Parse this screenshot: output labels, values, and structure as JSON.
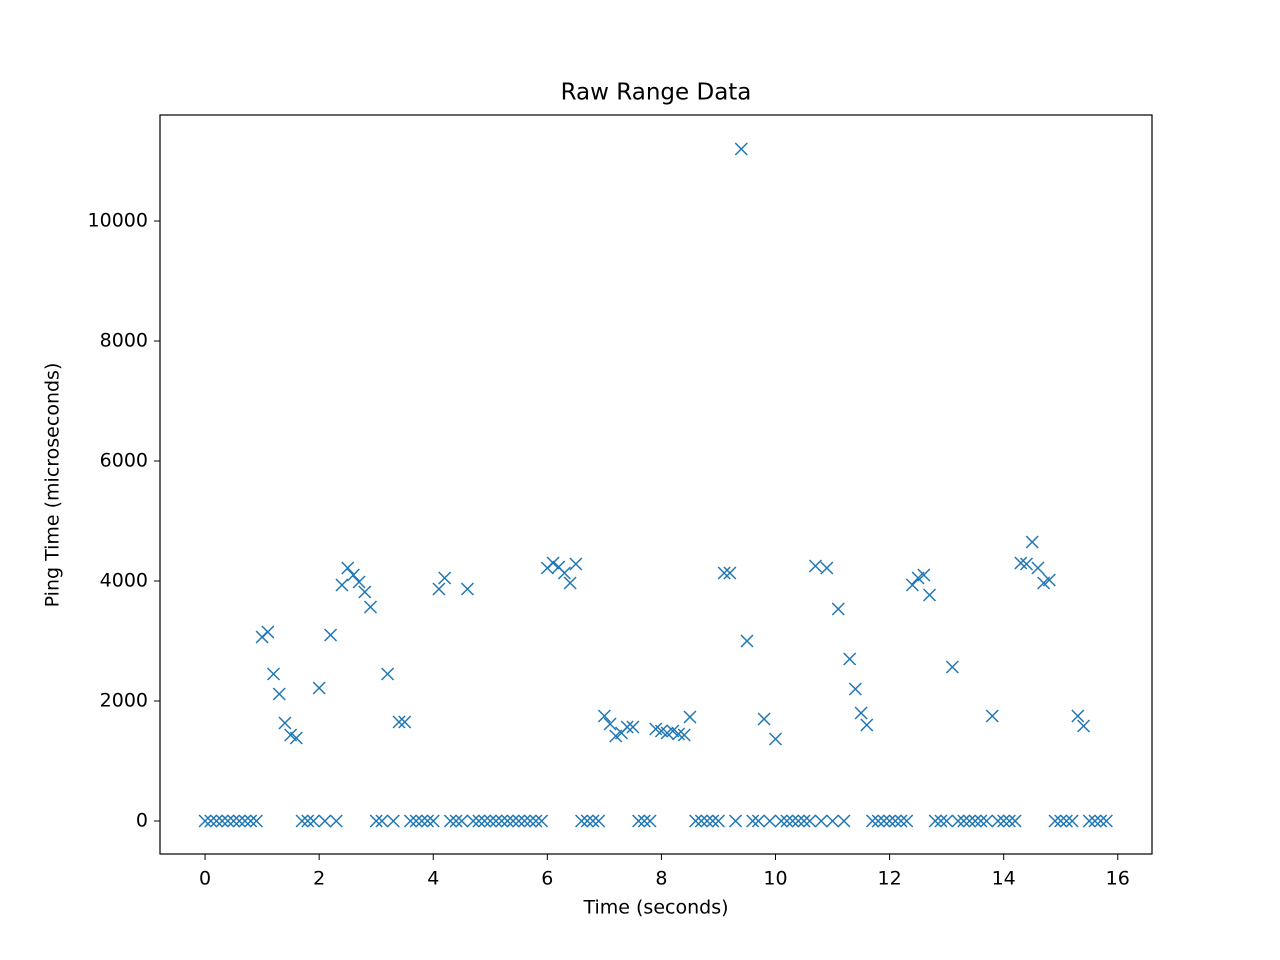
{
  "chart_data": {
    "type": "scatter",
    "title": "Raw Range Data",
    "x_label": "Time (seconds)",
    "y_label": "Ping Time (microseconds)",
    "color": "#1f77b4",
    "marker": "x",
    "grid": false,
    "xlim": [
      -0.79,
      16.6
    ],
    "ylim": [
      -550,
      11767
    ],
    "xticks": [
      0,
      2,
      4,
      6,
      8,
      10,
      12,
      14,
      16
    ],
    "yticks": [
      0,
      2000,
      4000,
      6000,
      8000,
      10000
    ],
    "x": [
      0,
      0.1,
      0.2,
      0.3,
      0.4,
      0.5,
      0.6,
      0.7,
      0.8,
      0.9,
      1.0,
      1.1,
      1.2,
      1.3,
      1.4,
      1.5,
      1.6,
      1.7,
      1.8,
      1.9,
      2.0,
      2.1,
      2.2,
      2.3,
      2.4,
      2.5,
      2.6,
      2.7,
      2.8,
      2.9,
      3.0,
      3.1,
      3.2,
      3.3,
      3.4,
      3.5,
      3.6,
      3.7,
      3.8,
      3.9,
      4.0,
      4.1,
      4.2,
      4.3,
      4.4,
      4.5,
      4.6,
      4.7,
      4.8,
      4.9,
      5.0,
      5.1,
      5.2,
      5.3,
      5.4,
      5.5,
      5.6,
      5.7,
      5.8,
      5.9,
      6.0,
      6.1,
      6.2,
      6.3,
      6.4,
      6.5,
      6.6,
      6.7,
      6.8,
      6.9,
      7.0,
      7.1,
      7.2,
      7.3,
      7.4,
      7.5,
      7.6,
      7.7,
      7.8,
      7.9,
      8.0,
      8.1,
      8.2,
      8.3,
      8.4,
      8.5,
      8.6,
      8.7,
      8.8,
      8.9,
      9.0,
      9.1,
      9.2,
      9.3,
      9.4,
      9.5,
      9.6,
      9.7,
      9.8,
      9.9,
      10.0,
      10.1,
      10.2,
      10.3,
      10.4,
      10.5,
      10.6,
      10.7,
      10.8,
      10.9,
      11.0,
      11.1,
      11.2,
      11.3,
      11.4,
      11.5,
      11.6,
      11.7,
      11.8,
      11.9,
      12.0,
      12.1,
      12.2,
      12.3,
      12.4,
      12.5,
      12.6,
      12.7,
      12.8,
      12.9,
      13.0,
      13.1,
      13.2,
      13.3,
      13.4,
      13.5,
      13.6,
      13.7,
      13.8,
      13.9,
      14.0,
      14.1,
      14.2,
      14.3,
      14.4,
      14.5,
      14.6,
      14.7,
      14.8,
      14.9,
      15.0,
      15.1,
      15.2,
      15.3,
      15.4,
      15.5,
      15.6,
      15.7,
      15.8
    ],
    "values": [
      0,
      0,
      0,
      0,
      0,
      0,
      0,
      0,
      0,
      0,
      3067,
      3150,
      2450,
      2117,
      1633,
      1433,
      1383,
      0,
      0,
      0,
      2217,
      0,
      3100,
      0,
      3933,
      4217,
      4100,
      3983,
      3817,
      3567,
      0,
      0,
      2450,
      0,
      1650,
      1650,
      0,
      0,
      0,
      0,
      0,
      3867,
      4050,
      0,
      0,
      0,
      3867,
      0,
      0,
      0,
      0,
      0,
      0,
      0,
      0,
      0,
      0,
      0,
      0,
      0,
      4217,
      4300,
      4233,
      4133,
      3967,
      4283,
      0,
      0,
      0,
      0,
      1750,
      1617,
      1417,
      1467,
      1567,
      1567,
      0,
      0,
      0,
      1533,
      1500,
      1467,
      1500,
      1450,
      1433,
      1733,
      0,
      0,
      0,
      0,
      0,
      4133,
      4133,
      0,
      11200,
      3000,
      0,
      0,
      1700,
      0,
      1367,
      0,
      0,
      0,
      0,
      0,
      0,
      4250,
      0,
      4217,
      0,
      3533,
      0,
      2700,
      2200,
      1800,
      1600,
      0,
      0,
      0,
      0,
      0,
      0,
      0,
      3933,
      4050,
      4100,
      3767,
      0,
      0,
      0,
      2567,
      0,
      0,
      0,
      0,
      0,
      0,
      1750,
      0,
      0,
      0,
      0,
      4300,
      4283,
      4650,
      4217,
      3967,
      4017,
      0,
      0,
      0,
      0,
      1750,
      1583,
      0,
      0,
      0,
      0
    ]
  }
}
